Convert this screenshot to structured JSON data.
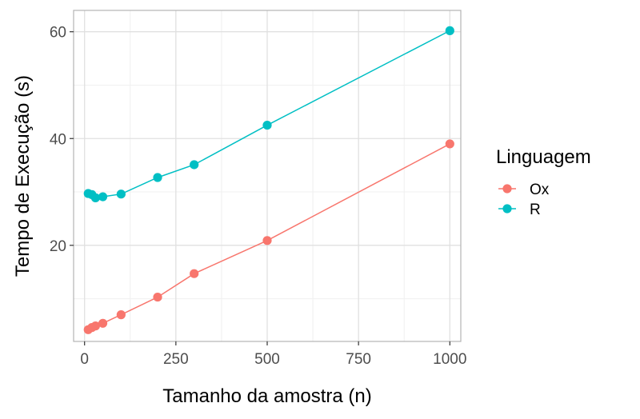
{
  "chart_data": {
    "type": "line",
    "xlabel": "Tamanho da amostra (n)",
    "ylabel": "Tempo de Execução (s)",
    "xlim": [
      -30,
      1030
    ],
    "ylim": [
      2,
      64
    ],
    "x_ticks": [
      0,
      250,
      500,
      750,
      1000
    ],
    "x_tick_labels": [
      "0",
      "250",
      "500",
      "750",
      "1000"
    ],
    "x_minor_ticks": [
      125,
      375,
      625,
      875
    ],
    "y_ticks": [
      20,
      40,
      60
    ],
    "y_tick_labels": [
      "20",
      "40",
      "60"
    ],
    "y_minor_ticks": [
      10,
      30,
      50
    ],
    "grid": true,
    "legend": {
      "title": "Linguagem",
      "position": "right"
    },
    "series": [
      {
        "name": "Ox",
        "color": "#F8766D",
        "x": [
          10,
          20,
          30,
          50,
          100,
          200,
          300,
          500,
          1000
        ],
        "y": [
          4.2,
          4.6,
          4.9,
          5.4,
          7.0,
          10.3,
          14.7,
          20.9,
          39.0
        ]
      },
      {
        "name": "R",
        "color": "#00BFC4",
        "x": [
          10,
          20,
          30,
          50,
          100,
          200,
          300,
          500,
          1000
        ],
        "y": [
          29.7,
          29.5,
          28.9,
          29.1,
          29.6,
          32.7,
          35.1,
          42.5,
          60.2
        ]
      }
    ]
  }
}
